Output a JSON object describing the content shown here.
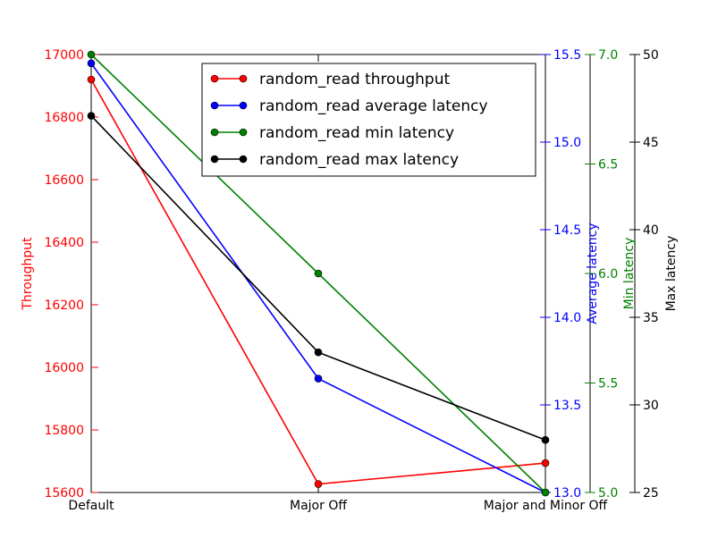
{
  "chart_data": {
    "type": "line",
    "categories": [
      "Default",
      "Major Off",
      "Major and Minor Off"
    ],
    "series": [
      {
        "name": "random_read throughput",
        "color": "#ff0000",
        "axis": "throughput",
        "values": [
          16920,
          15627,
          15694
        ]
      },
      {
        "name": "random_read average latency",
        "color": "#0000ff",
        "axis": "average",
        "values": [
          15.45,
          13.65,
          13.0
        ]
      },
      {
        "name": "random_read min latency",
        "color": "#008000",
        "axis": "min",
        "values": [
          7.0,
          6.0,
          5.0
        ]
      },
      {
        "name": "random_read max latency",
        "color": "#000000",
        "axis": "max",
        "values": [
          46.5,
          33.0,
          28.0
        ]
      }
    ],
    "axes": {
      "throughput": {
        "label": "Throughput",
        "color": "#ff0000",
        "range": [
          15600,
          17000
        ],
        "ticks": [
          "15600",
          "15800",
          "16000",
          "16200",
          "16400",
          "16600",
          "16800",
          "17000"
        ]
      },
      "average": {
        "label": "Average latency",
        "color": "#0000ff",
        "range": [
          13.0,
          15.5
        ],
        "ticks": [
          "13.0",
          "13.5",
          "14.0",
          "14.5",
          "15.0",
          "15.5"
        ]
      },
      "min": {
        "label": "Min latency",
        "color": "#008000",
        "range": [
          5.0,
          7.0
        ],
        "ticks": [
          "5.0",
          "5.5",
          "6.0",
          "6.5",
          "7.0"
        ]
      },
      "max": {
        "label": "Max latency",
        "color": "#000000",
        "range": [
          25,
          50
        ],
        "ticks": [
          "25",
          "30",
          "35",
          "40",
          "45",
          "50"
        ]
      }
    },
    "legend": "top-right",
    "grid": false
  }
}
